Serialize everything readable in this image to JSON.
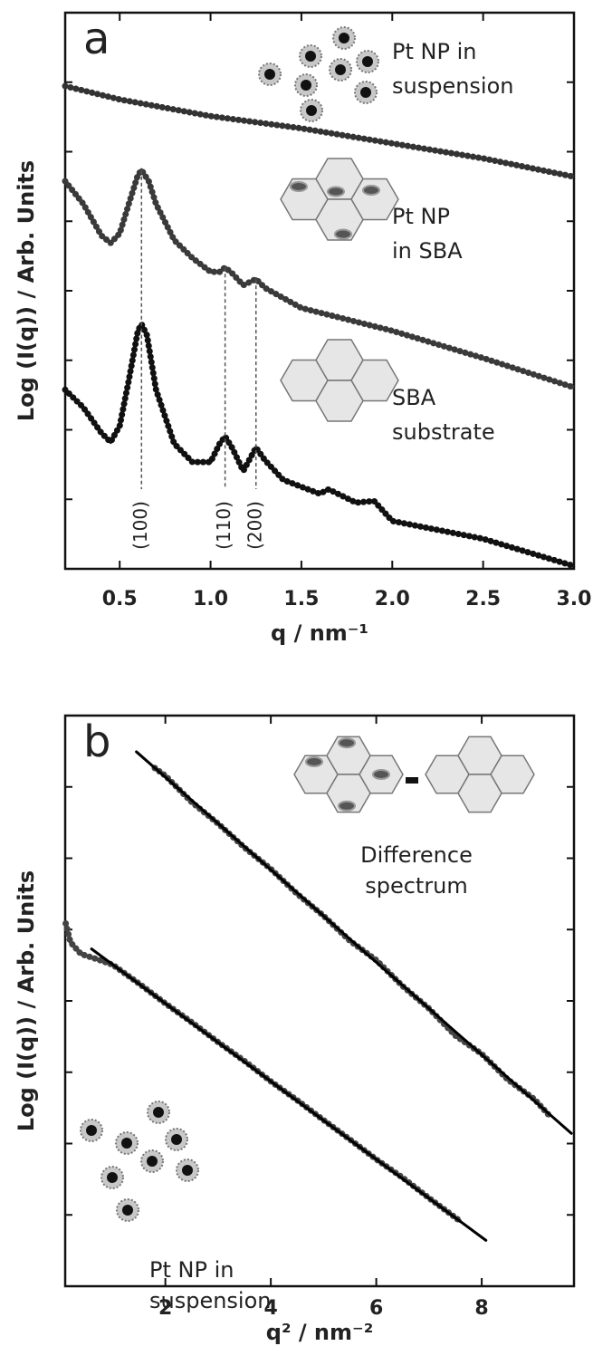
{
  "chart_data": [
    {
      "type": "line",
      "panel_label": "a",
      "xlabel": "q / nm⁻¹",
      "ylabel": "Log (I(q)) / Arb. Units",
      "xlim": [
        0.2,
        3.0
      ],
      "ylim": [
        0,
        10
      ],
      "xticks": [
        0.5,
        {
          "value": 1,
          "label": "1.0"
        },
        1.5,
        {
          "value": 2,
          "label": "2.0"
        },
        2.5,
        {
          "value": 3,
          "label": "3.0"
        }
      ],
      "series": [
        {
          "color": "#333333",
          "style": "points",
          "x": [
            0.2,
            0.5,
            1.0,
            1.5,
            2.0,
            2.5,
            3.0
          ],
          "values": [
            8.68,
            8.44,
            8.14,
            7.92,
            7.65,
            7.38,
            7.05
          ]
        },
        {
          "color": "#3a3a3a",
          "style": "points",
          "x": [
            0.2,
            0.3,
            0.4,
            0.45,
            0.5,
            0.55,
            0.6,
            0.62,
            0.66,
            0.7,
            0.8,
            0.9,
            1.0,
            1.05,
            1.08,
            1.12,
            1.18,
            1.25,
            1.3,
            1.5,
            2.0,
            2.5,
            3.0
          ],
          "values": [
            6.97,
            6.56,
            5.99,
            5.86,
            6.03,
            6.56,
            7.08,
            7.17,
            6.97,
            6.56,
            5.91,
            5.59,
            5.34,
            5.34,
            5.42,
            5.31,
            5.1,
            5.21,
            5.05,
            4.69,
            4.28,
            3.79,
            3.26
          ]
        },
        {
          "color": "#111111",
          "style": "points",
          "x": [
            0.2,
            0.3,
            0.4,
            0.45,
            0.5,
            0.55,
            0.6,
            0.62,
            0.65,
            0.7,
            0.8,
            0.9,
            1.0,
            1.05,
            1.08,
            1.12,
            1.18,
            1.25,
            1.3,
            1.4,
            1.6,
            1.65,
            1.8,
            1.9,
            2.0,
            2.5,
            3.0
          ],
          "values": [
            3.22,
            2.9,
            2.44,
            2.28,
            2.57,
            3.39,
            4.28,
            4.4,
            4.2,
            3.22,
            2.25,
            1.92,
            1.92,
            2.25,
            2.38,
            2.17,
            1.76,
            2.18,
            1.95,
            1.6,
            1.35,
            1.43,
            1.19,
            1.22,
            0.86,
            0.54,
            0.05
          ]
        }
      ],
      "peaks": [
        {
          "x": 0.62,
          "label": "(100)"
        },
        {
          "x": 1.08,
          "label": "(110)"
        },
        {
          "x": 1.25,
          "label": "(200)"
        }
      ],
      "annotations": [
        {
          "lines": [
            "Pt NP in",
            "suspension"
          ]
        },
        {
          "lines": [
            "Pt NP",
            "in SBA"
          ]
        },
        {
          "lines": [
            "SBA",
            "substrate"
          ]
        }
      ]
    },
    {
      "type": "line",
      "panel_label": "b",
      "xlabel": "q² / nm⁻²",
      "ylabel": "Log (I(q)) / Arb. Units",
      "xlim": [
        0.1,
        9.75
      ],
      "ylim": [
        0.8,
        12
      ],
      "xticks": [
        2,
        4,
        6,
        8
      ],
      "series": [
        {
          "color": "#444444",
          "style": "points",
          "x": [
            1.8,
            2,
            2.5,
            3,
            3.5,
            4,
            4.5,
            5,
            5.5,
            6,
            6.5,
            7,
            7.5,
            8,
            8.5,
            9,
            9.3
          ],
          "values": [
            10.97,
            10.82,
            10.3,
            9.88,
            9.41,
            8.99,
            8.5,
            8.07,
            7.58,
            7.2,
            6.69,
            6.25,
            5.72,
            5.36,
            4.85,
            4.47,
            4.13
          ]
        },
        {
          "color": "#000000",
          "style": "line",
          "x": [
            1.45,
            9.7
          ],
          "values": [
            11.29,
            3.8
          ]
        },
        {
          "color": "#444444",
          "style": "points",
          "x": [
            0.11,
            0.2,
            0.4,
            0.7,
            1.0,
            1.5,
            2,
            2.5,
            3,
            3.5,
            4,
            4.5,
            5,
            5.5,
            6,
            6.5,
            7,
            7.6
          ],
          "values": [
            7.92,
            7.55,
            7.32,
            7.22,
            7.11,
            6.74,
            6.35,
            5.98,
            5.59,
            5.22,
            4.82,
            4.45,
            4.06,
            3.68,
            3.29,
            2.93,
            2.53,
            2.07
          ]
        },
        {
          "color": "#000000",
          "style": "line",
          "x": [
            0.6,
            8.08
          ],
          "values": [
            7.42,
            1.7
          ]
        }
      ],
      "annotations": [
        {
          "lines": [
            "Difference",
            "spectrum"
          ]
        },
        {
          "lines": [
            "Pt NP in",
            "suspension"
          ]
        }
      ]
    }
  ]
}
